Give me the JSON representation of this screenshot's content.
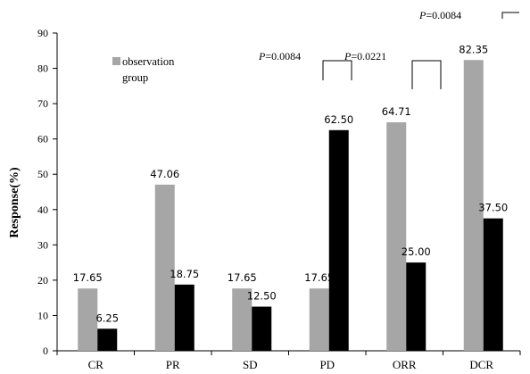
{
  "chart_data": {
    "type": "bar",
    "categories": [
      "CR",
      "PR",
      "SD",
      "PD",
      "ORR",
      "DCR"
    ],
    "series": [
      {
        "name": "observation group",
        "color": "#a6a6a6",
        "values": [
          17.65,
          47.06,
          17.65,
          17.65,
          64.71,
          82.35
        ],
        "labels": [
          "17.65",
          "47.06",
          "17.65",
          "17.65",
          "64.71",
          "82.35"
        ]
      },
      {
        "color": "#000000",
        "values": [
          6.25,
          18.75,
          12.5,
          62.5,
          25.0,
          37.5
        ],
        "labels": [
          "6.25",
          "18.75",
          "12.50",
          "62.50",
          "25.00",
          "37.50"
        ]
      }
    ],
    "xlabel": "",
    "ylabel": "Response(%)",
    "ylim": [
      0,
      90
    ],
    "yticks": [
      0,
      10,
      20,
      30,
      40,
      50,
      60,
      70,
      80,
      90
    ],
    "grid": false,
    "legend": {
      "position": "top-left",
      "line1": "observation",
      "line2": "group"
    },
    "annotations": [
      {
        "text_prefix": "P",
        "text_value": "=0.0084",
        "category": "PD"
      },
      {
        "text_prefix": "P",
        "text_value": "=0.0221",
        "category": "ORR"
      },
      {
        "text_prefix": "P",
        "text_value": "=0.0084",
        "category": "DCR"
      }
    ]
  }
}
